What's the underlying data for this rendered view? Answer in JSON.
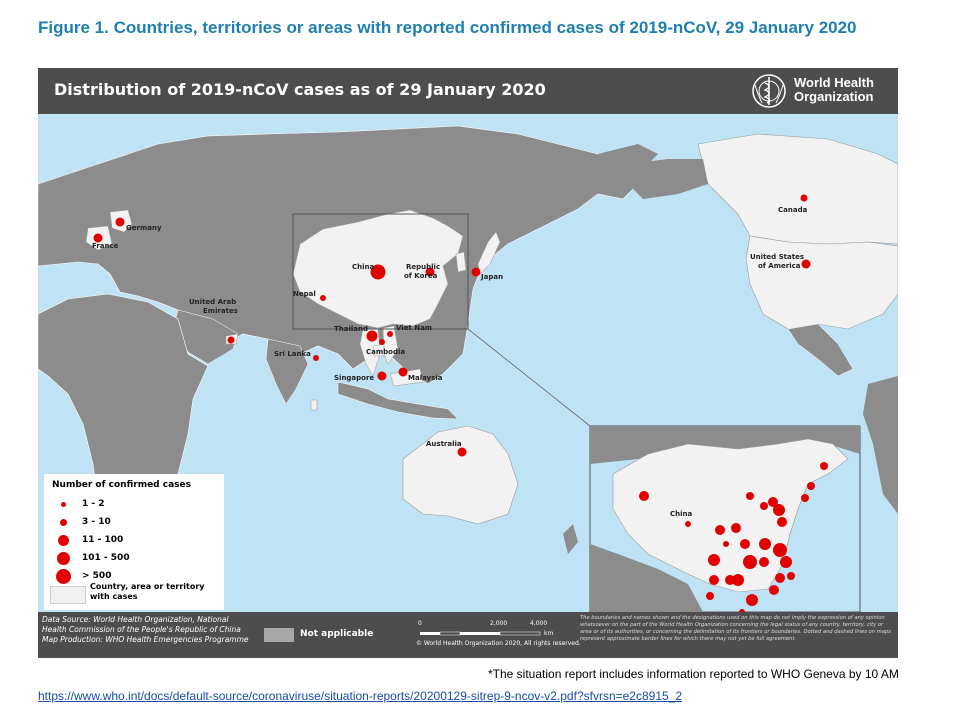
{
  "figure_title": "Figure 1. Countries, territories or areas with reported confirmed cases of 2019-nCoV, 29 January 2020",
  "map_title": "Distribution of 2019-nCoV cases as of 29 January 2020",
  "who_logo": {
    "line1": "World Health",
    "line2": "Organization",
    "icon": "who-emblem-icon"
  },
  "colors": {
    "header": "#4d4d4d",
    "ocean": "#bfe3f5",
    "land_na": "#8c8c8c",
    "land_cases": "#f2f2f2",
    "dot": "#e00000",
    "title": "#1f7fb0"
  },
  "locations": [
    {
      "label": "Germany",
      "category": "3 - 10"
    },
    {
      "label": "France",
      "category": "3 - 10"
    },
    {
      "label": "United Arab Emirates",
      "label_lines": [
        "United Arab",
        "Emirates"
      ],
      "category": "3 - 10"
    },
    {
      "label": "Nepal",
      "category": "1 - 2"
    },
    {
      "label": "Sri Lanka",
      "category": "1 - 2"
    },
    {
      "label": "China",
      "category": "> 500"
    },
    {
      "label": "Republic of Korea",
      "label_lines": [
        "Republic",
        "of Korea"
      ],
      "category": "3 - 10"
    },
    {
      "label": "Japan",
      "category": "3 - 10"
    },
    {
      "label": "Thailand",
      "category": "11 - 100"
    },
    {
      "label": "Viet Nam",
      "category": "1 - 2"
    },
    {
      "label": "Cambodia",
      "category": "1 - 2"
    },
    {
      "label": "Singapore",
      "category": "3 - 10"
    },
    {
      "label": "Malaysia",
      "category": "3 - 10"
    },
    {
      "label": "Australia",
      "category": "3 - 10"
    },
    {
      "label": "Canada",
      "category": "1 - 2"
    },
    {
      "label": "United States of America",
      "label_lines": [
        "United States",
        "of America"
      ],
      "category": "3 - 10"
    }
  ],
  "inset_label": "China",
  "legend": {
    "title": "Number of confirmed cases",
    "items": [
      "1 - 2",
      "3 - 10",
      "11 - 100",
      "101 - 500",
      "> 500"
    ],
    "swatch_label_line1": "Country, area or territory",
    "swatch_label_line2": "with cases"
  },
  "footer": {
    "source_line1": "Data Source: World Health Organization, National",
    "source_line2": "Health Commission of the People's Republic of China",
    "source_line3": "Map Production: WHO Health Emergencies Programme",
    "not_applicable": "Not applicable",
    "scale_0": "0",
    "scale_mid": "2,000",
    "scale_max": "4,000",
    "scale_unit": "km",
    "copyright": "© World Health Organization 2020, All rights reserved.",
    "disclaimer": "The boundaries and names shown and the designations used on this map do not imply the expression of any opinion whatsoever on the part of the World Health Organization concerning the legal status of any country, territory, city or area or of its authorities, or concerning the delimitation of its frontiers or boundaries. Dotted and dashed lines on maps represent approximate border lines for which there may not yet be full agreement."
  },
  "footnote": "*The situation report includes information reported to WHO Geneva by 10 AM",
  "source_url": "https://www.who.int/docs/default-source/coronaviruse/situation-reports/20200129-sitrep-9-ncov-v2.pdf?sfvrsn=e2c8915_2"
}
